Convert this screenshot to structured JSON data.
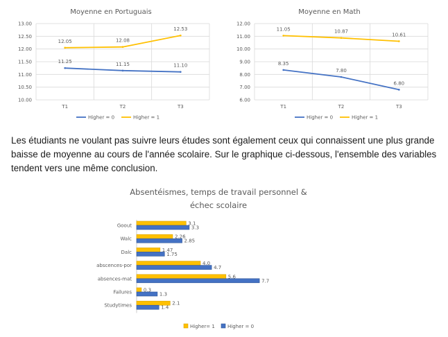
{
  "paragraph": "Les étudiants ne voulant pas suivre leurs études sont également ceux qui connaissent une plus grande baisse de moyenne au cours de l'année scolaire. Sur le graphique ci-dessous, l'ensemble des variables tendent vers une même conclusion.",
  "colors": {
    "higher0": "#4472C4",
    "higher1": "#FFC000",
    "grid": "#D9D9D9",
    "text": "#595959"
  },
  "chart_data": [
    {
      "type": "line",
      "title": "Moyenne  en Portuguais",
      "categories": [
        "T1",
        "T2",
        "T3"
      ],
      "ylim": [
        10.0,
        13.0
      ],
      "yticks": [
        "10.00",
        "10.50",
        "11.00",
        "11.50",
        "12.00",
        "12.50",
        "13.00"
      ],
      "grid": true,
      "legend_position": "bottom",
      "series": [
        {
          "name": "Higher = 0",
          "values": [
            11.25,
            11.15,
            11.1
          ],
          "labels": [
            "11.25",
            "11.15",
            "11.10"
          ]
        },
        {
          "name": "Higher = 1",
          "values": [
            12.05,
            12.08,
            12.53
          ],
          "labels": [
            "12.05",
            "12.08",
            "12.53"
          ]
        }
      ]
    },
    {
      "type": "line",
      "title": "Moyenne  en Math",
      "categories": [
        "T1",
        "T2",
        "T3"
      ],
      "ylim": [
        6.0,
        12.0
      ],
      "yticks": [
        "6.00",
        "7.00",
        "8.00",
        "9.00",
        "10.00",
        "11.00",
        "12.00"
      ],
      "grid": true,
      "legend_position": "bottom",
      "series": [
        {
          "name": "Higher = 0",
          "values": [
            8.35,
            7.8,
            6.8
          ],
          "labels": [
            "8.35",
            "7.80",
            "6.80"
          ]
        },
        {
          "name": "Higher = 1",
          "values": [
            11.05,
            10.87,
            10.61
          ],
          "labels": [
            "11.05",
            "10.87",
            "10.61"
          ]
        }
      ]
    },
    {
      "type": "bar",
      "orientation": "horizontal",
      "title": "Absentéismes, temps de travail personnel &",
      "title_line2": "échec scolaire",
      "categories": [
        "Goout",
        "Walc",
        "Dalc",
        "abscences-por",
        "absences-mat",
        "Failures",
        "Studytimes"
      ],
      "xlim": [
        0,
        9
      ],
      "grid": false,
      "legend_position": "bottom",
      "series": [
        {
          "name": "Higher= 1",
          "values": [
            3.1,
            2.26,
            1.47,
            4.0,
            5.6,
            0.3,
            2.1
          ],
          "labels": [
            "3.1",
            "2.26",
            "1.47",
            "4.0",
            "5.6",
            "0.3",
            "2.1"
          ]
        },
        {
          "name": "Higher = 0",
          "values": [
            3.3,
            2.85,
            1.75,
            4.7,
            7.7,
            1.3,
            1.4
          ],
          "labels": [
            "3.3",
            "2.85",
            "1.75",
            "4.7",
            "7.7",
            "1.3",
            "1.4"
          ]
        }
      ]
    }
  ]
}
